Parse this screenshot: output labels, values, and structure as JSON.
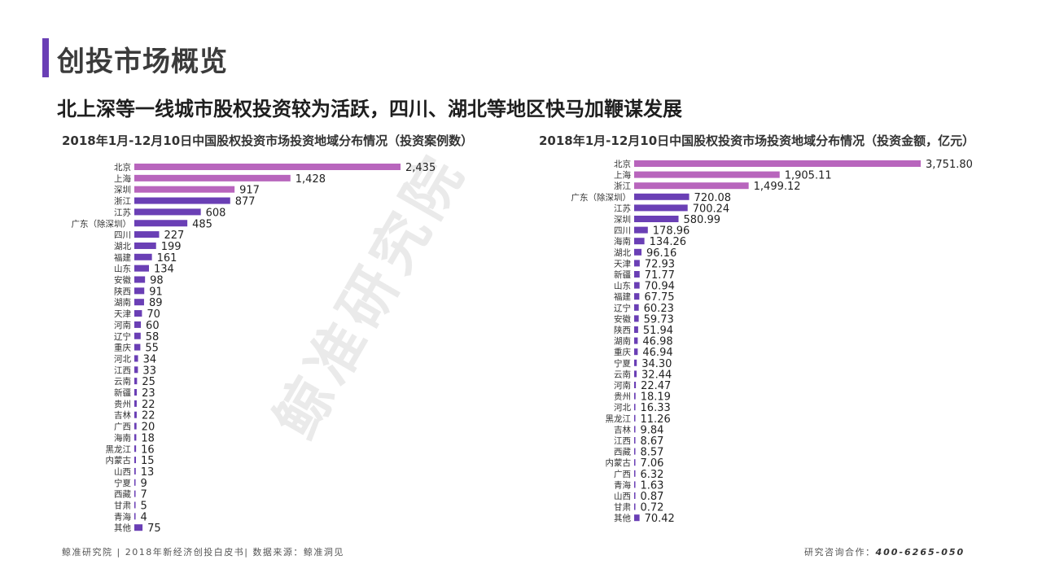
{
  "header": {
    "title": "创投市场概览",
    "subtitle": "北上深等一线城市股权投资较为活跃，四川、湖北等地区快马加鞭谋发展"
  },
  "watermark": "鲸准研究院",
  "footer": {
    "source": "鲸准研究院 | 2018年新经济创投白皮书| 数据来源：鲸准洞见",
    "contact_label": "研究咨询合作：",
    "contact_phone": "400-6265-050"
  },
  "colors": {
    "accent": "#6a3fb5",
    "pink": "#b865bd",
    "purple": "#6a3fb5"
  },
  "chart_data": [
    {
      "type": "bar",
      "orientation": "horizontal",
      "title": "2018年1月-12月10日中国股权投资市场投资地域分布情况（投资案例数）",
      "categories": [
        "北京",
        "上海",
        "深圳",
        "浙江",
        "江苏",
        "广东（除深圳）",
        "四川",
        "湖北",
        "福建",
        "山东",
        "安徽",
        "陕西",
        "湖南",
        "天津",
        "河南",
        "辽宁",
        "重庆",
        "河北",
        "江西",
        "云南",
        "新疆",
        "贵州",
        "吉林",
        "广西",
        "海南",
        "黑龙江",
        "内蒙古",
        "山西",
        "宁夏",
        "西藏",
        "甘肃",
        "青海",
        "其他"
      ],
      "values": [
        2435,
        1428,
        917,
        877,
        608,
        485,
        227,
        199,
        161,
        134,
        98,
        91,
        89,
        70,
        60,
        58,
        55,
        34,
        33,
        25,
        23,
        22,
        22,
        20,
        18,
        16,
        15,
        13,
        9,
        7,
        5,
        4,
        75
      ],
      "value_labels": [
        "2,435",
        "1,428",
        "917",
        "877",
        "608",
        "485",
        "227",
        "199",
        "161",
        "134",
        "98",
        "91",
        "89",
        "70",
        "60",
        "58",
        "55",
        "34",
        "33",
        "25",
        "23",
        "22",
        "22",
        "20",
        "18",
        "16",
        "15",
        "13",
        "9",
        "7",
        "5",
        "4",
        "75"
      ],
      "pink_count": 3
    },
    {
      "type": "bar",
      "orientation": "horizontal",
      "title": "2018年1月-12月10日中国股权投资市场投资地域分布情况（投资金额，亿元）",
      "categories": [
        "北京",
        "上海",
        "浙江",
        "广东（除深圳）",
        "江苏",
        "深圳",
        "四川",
        "海南",
        "湖北",
        "天津",
        "新疆",
        "山东",
        "福建",
        "辽宁",
        "安徽",
        "陕西",
        "湖南",
        "重庆",
        "宁夏",
        "云南",
        "河南",
        "贵州",
        "河北",
        "黑龙江",
        "吉林",
        "江西",
        "西藏",
        "内蒙古",
        "广西",
        "青海",
        "山西",
        "甘肃",
        "其他"
      ],
      "values": [
        3751.8,
        1905.11,
        1499.12,
        720.08,
        700.24,
        580.99,
        178.96,
        134.26,
        96.16,
        72.93,
        71.77,
        70.94,
        67.75,
        60.23,
        59.73,
        51.94,
        46.98,
        46.94,
        34.3,
        32.44,
        22.47,
        18.19,
        16.33,
        11.26,
        9.84,
        8.67,
        8.57,
        7.06,
        6.32,
        1.63,
        0.87,
        0.72,
        70.42
      ],
      "value_labels": [
        "3,751.80",
        "1,905.11",
        "1,499.12",
        "720.08",
        "700.24",
        "580.99",
        "178.96",
        "134.26",
        "96.16",
        "72.93",
        "71.77",
        "70.94",
        "67.75",
        "60.23",
        "59.73",
        "51.94",
        "46.98",
        "46.94",
        "34.30",
        "32.44",
        "22.47",
        "18.19",
        "16.33",
        "11.26",
        "9.84",
        "8.67",
        "8.57",
        "7.06",
        "6.32",
        "1.63",
        "0.87",
        "0.72",
        "70.42"
      ],
      "pink_count": 3
    }
  ]
}
